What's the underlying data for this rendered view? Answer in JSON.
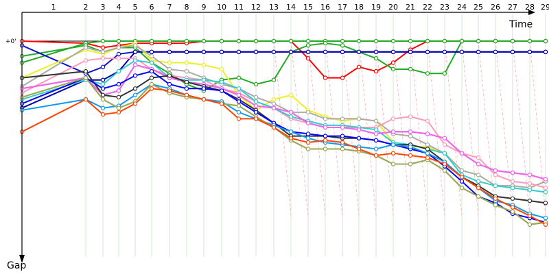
{
  "chart_data": {
    "type": "line",
    "xlabel": "Time",
    "ylabel": "Gap",
    "zero_label": "+0'",
    "x": [
      1,
      2,
      3,
      4,
      5,
      6,
      7,
      8,
      9,
      10,
      11,
      12,
      13,
      14,
      15,
      16,
      17,
      18,
      19,
      20,
      21,
      22,
      23,
      24,
      25,
      26,
      27,
      28,
      29
    ],
    "xlim": [
      0.4,
      29.3
    ],
    "ylim": [
      0,
      100
    ],
    "y_direction": "down",
    "series": [
      {
        "color": "#ff0000",
        "values": [
          0,
          1,
          3,
          2,
          1,
          1,
          1,
          1,
          0,
          0,
          0,
          0,
          0,
          0,
          8,
          17,
          17,
          12,
          14,
          10,
          4,
          0,
          0,
          0,
          0,
          0,
          0,
          0,
          0
        ]
      },
      {
        "color": "#22aa22",
        "values": [
          10,
          1,
          0,
          0,
          0,
          0,
          0,
          0,
          0,
          0,
          0,
          0,
          0,
          0,
          0,
          0,
          0,
          0,
          0,
          0,
          0,
          0,
          0,
          0,
          0,
          0,
          0,
          0,
          0
        ]
      },
      {
        "color": "#22aa22",
        "values": [
          7,
          2,
          5,
          3,
          3,
          10,
          15,
          20,
          23,
          18,
          17,
          20,
          18,
          5,
          2,
          1,
          2,
          5,
          8,
          13,
          13,
          15,
          15,
          0,
          0,
          0,
          0,
          0,
          0
        ]
      },
      {
        "color": "#1111cc",
        "values": [
          2,
          15,
          12,
          6,
          5,
          5,
          5,
          5,
          5,
          5,
          5,
          5,
          5,
          5,
          5,
          5,
          5,
          5,
          5,
          5,
          5,
          5,
          5,
          5,
          5,
          5,
          5,
          5,
          5
        ]
      },
      {
        "color": "#0000aa",
        "values": [
          31,
          18,
          18,
          14,
          5,
          5,
          5,
          5,
          5,
          5,
          5,
          5,
          5,
          5,
          5,
          5,
          5,
          5,
          5,
          5,
          5,
          5,
          5,
          5,
          5,
          5,
          5,
          5,
          5
        ]
      },
      {
        "color": "#eeee22",
        "values": [
          17,
          4,
          6,
          3,
          1,
          9,
          10,
          10,
          11,
          13,
          25,
          32,
          27,
          25,
          32,
          35,
          37,
          36,
          37,
          47,
          49,
          49,
          52,
          60,
          62,
          67,
          67,
          68,
          65
        ]
      },
      {
        "color": "#aaaaaa",
        "values": [
          21,
          3,
          5,
          3,
          2,
          7,
          13,
          14,
          17,
          20,
          22,
          26,
          29,
          33,
          33,
          36,
          36,
          36,
          37,
          43,
          44,
          48,
          52,
          60,
          62,
          67,
          67,
          68,
          65
        ]
      },
      {
        "color": "#ff99bb",
        "values": [
          24,
          9,
          8,
          8,
          8,
          13,
          16,
          17,
          18,
          22,
          24,
          28,
          31,
          36,
          38,
          40,
          40,
          40,
          40,
          36,
          35,
          37,
          48,
          52,
          54,
          62,
          65,
          66,
          68
        ]
      },
      {
        "color": "#33cccc",
        "values": [
          27,
          18,
          20,
          14,
          9,
          10,
          17,
          18,
          18,
          19,
          22,
          28,
          31,
          35,
          37,
          39,
          39,
          40,
          41,
          47,
          48,
          50,
          52,
          62,
          65,
          67,
          68,
          69,
          70
        ]
      },
      {
        "color": "#cc44cc",
        "values": [
          22,
          17,
          25,
          23,
          11,
          13,
          17,
          19,
          20,
          22,
          25,
          30,
          31,
          33,
          38,
          40,
          40,
          41,
          43,
          42,
          42,
          43,
          45,
          52,
          57,
          60,
          61,
          62,
          64
        ]
      },
      {
        "color": "#ee66ee",
        "values": [
          22,
          17,
          25,
          23,
          11,
          13,
          17,
          19,
          20,
          22,
          25,
          30,
          31,
          33,
          38,
          40,
          40,
          41,
          43,
          42,
          42,
          43,
          45,
          52,
          57,
          60,
          61,
          62,
          64
        ]
      },
      {
        "color": "#333333",
        "values": [
          17,
          14,
          25,
          26,
          22,
          17,
          16,
          19,
          21,
          23,
          27,
          32,
          38,
          44,
          44,
          44,
          45,
          45,
          46,
          48,
          48,
          50,
          56,
          63,
          67,
          72,
          73,
          74,
          75
        ]
      },
      {
        "color": "#0000ff",
        "values": [
          29,
          17,
          22,
          20,
          16,
          14,
          20,
          22,
          22,
          23,
          28,
          33,
          38,
          42,
          43,
          44,
          44,
          45,
          46,
          48,
          50,
          52,
          58,
          65,
          72,
          75,
          80,
          82,
          84
        ]
      },
      {
        "color": "#1199ee",
        "values": [
          32,
          27,
          31,
          30,
          25,
          20,
          22,
          25,
          27,
          28,
          33,
          36,
          39,
          42,
          45,
          47,
          48,
          49,
          50,
          48,
          49,
          52,
          56,
          63,
          68,
          74,
          76,
          80,
          82
        ]
      },
      {
        "color": "#888844",
        "values": [
          26,
          17,
          27,
          31,
          28,
          20,
          24,
          26,
          27,
          29,
          30,
          35,
          40,
          46,
          50,
          50,
          50,
          51,
          53,
          57,
          57,
          55,
          60,
          68,
          72,
          76,
          79,
          85,
          84
        ]
      },
      {
        "color": "#99aa55",
        "values": [
          26,
          17,
          27,
          31,
          28,
          20,
          24,
          26,
          27,
          29,
          30,
          35,
          40,
          46,
          50,
          50,
          50,
          51,
          53,
          57,
          57,
          55,
          60,
          68,
          72,
          76,
          79,
          85,
          84
        ]
      },
      {
        "color": "#ff4400",
        "values": [
          42,
          27,
          34,
          33,
          29,
          22,
          23,
          25,
          27,
          29,
          36,
          36,
          40,
          45,
          47,
          46,
          47,
          50,
          53,
          52,
          53,
          54,
          57,
          63,
          68,
          73,
          77,
          81,
          85
        ]
      }
    ]
  }
}
